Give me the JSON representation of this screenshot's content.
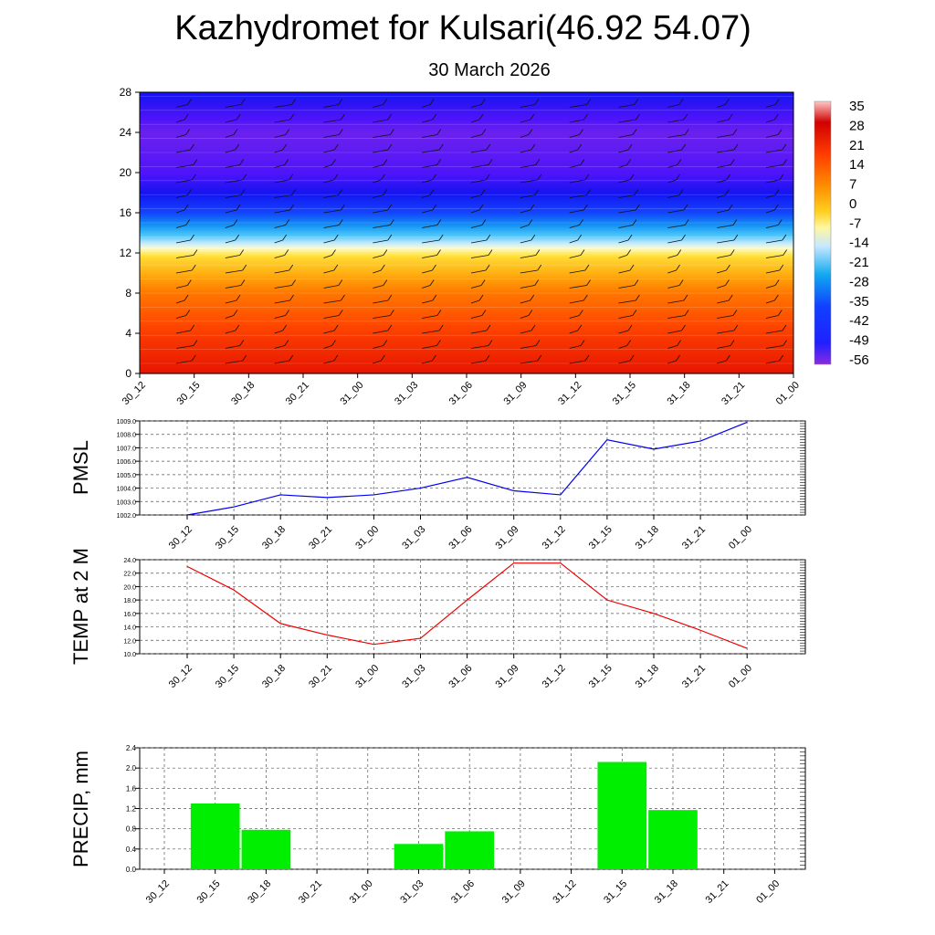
{
  "title": "Kazhydromet for Kulsari(46.92 54.07)",
  "subtitle": "30 March 2026",
  "time_labels": [
    "30_12",
    "30_15",
    "30_18",
    "30_21",
    "31_00",
    "31_03",
    "31_06",
    "31_09",
    "31_12",
    "31_15",
    "31_18",
    "31_21",
    "01_00"
  ],
  "chart_data": [
    {
      "type": "heatmap",
      "name": "cross-section",
      "ylim": [
        0,
        28
      ],
      "yticks": [
        "0",
        "4",
        "8",
        "12",
        "16",
        "20",
        "24",
        "28"
      ],
      "colorbar_labels": [
        "35",
        "28",
        "21",
        "14",
        "7",
        "0",
        "-7",
        "-14",
        "-21",
        "-28",
        "-35",
        "-42",
        "-49",
        "-56"
      ],
      "level_temperature_profile": [
        {
          "level": 0,
          "value": 30
        },
        {
          "level": 4,
          "value": 22
        },
        {
          "level": 8,
          "value": 12
        },
        {
          "level": 11.5,
          "value": -4
        },
        {
          "level": 13,
          "value": -16
        },
        {
          "level": 16,
          "value": -40
        },
        {
          "level": 20,
          "value": -56
        },
        {
          "level": 24,
          "value": -60
        },
        {
          "level": 28,
          "value": -48
        }
      ]
    },
    {
      "type": "line",
      "name": "pmsl",
      "ylabel": "PMSL",
      "ylim": [
        1002.0,
        1009.0
      ],
      "yticks": [
        "1002.0",
        "1003.0",
        "1004.0",
        "1005.0",
        "1006.0",
        "1007.0",
        "1008.0",
        "1009.0"
      ],
      "values": [
        1002.0,
        1002.6,
        1003.5,
        1003.3,
        1003.5,
        1004.0,
        1004.8,
        1003.8,
        1003.5,
        1007.6,
        1006.9,
        1007.5,
        1008.9
      ],
      "color": "#0000ee"
    },
    {
      "type": "line",
      "name": "temp",
      "ylabel": "TEMP at 2 M",
      "ylim": [
        10.0,
        24.0
      ],
      "yticks": [
        "10.0",
        "12.0",
        "14.0",
        "16.0",
        "18.0",
        "20.0",
        "22.0",
        "24.0"
      ],
      "values": [
        23.0,
        19.5,
        14.5,
        12.8,
        11.4,
        12.3,
        18.0,
        23.5,
        23.5,
        18.0,
        16.0,
        13.5,
        10.8
      ],
      "color": "#ee0000"
    },
    {
      "type": "bar",
      "name": "precip",
      "ylabel": "PRECIP, mm",
      "ylim": [
        0,
        2.4
      ],
      "yticks": [
        "0.0",
        "0.4",
        "0.8",
        "1.2",
        "1.6",
        "2.0",
        "2.4"
      ],
      "values": [
        0,
        1.3,
        0.78,
        0,
        0,
        0.5,
        0.75,
        0,
        0,
        2.12,
        1.17,
        0,
        0
      ],
      "color": "#00ee00"
    }
  ]
}
